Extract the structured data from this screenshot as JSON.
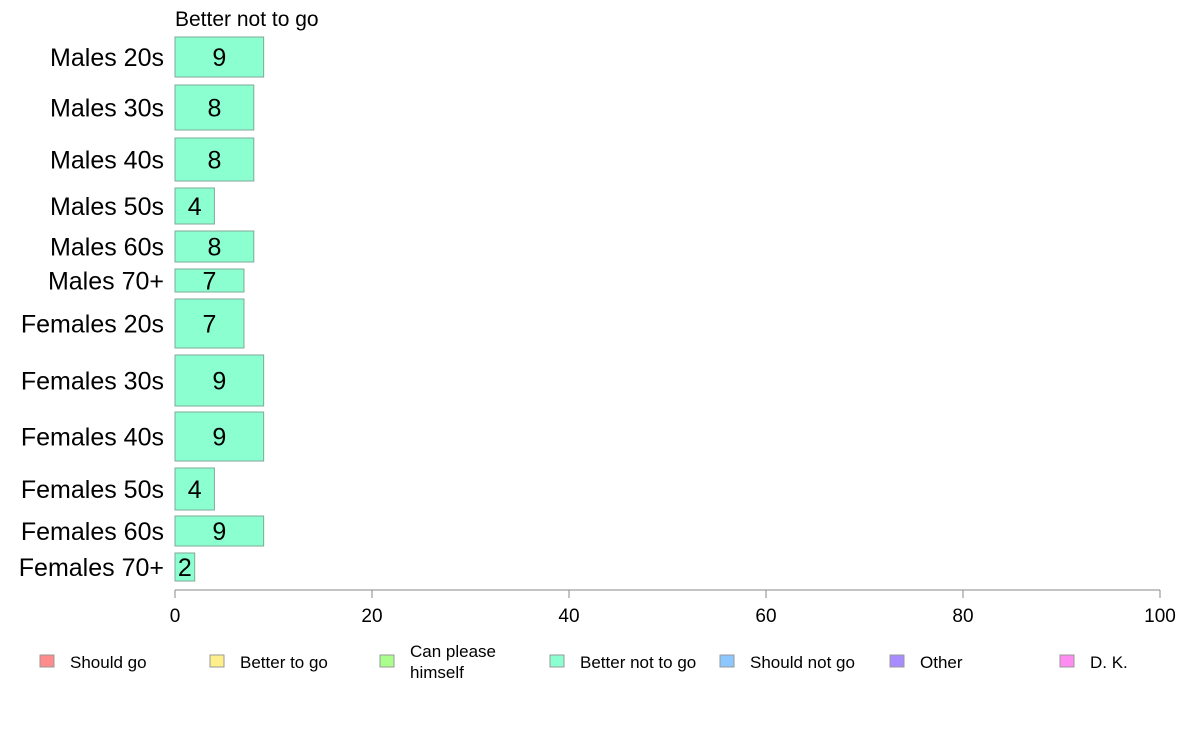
{
  "chart_data": {
    "type": "bar",
    "orientation": "horizontal",
    "title": "Better not to go",
    "categories": [
      "Males 20s",
      "Males 30s",
      "Males 40s",
      "Males 50s",
      "Males 60s",
      "Males 70+",
      "Females 20s",
      "Females 30s",
      "Females 40s",
      "Females 50s",
      "Females 60s",
      "Females 70+"
    ],
    "series": [
      {
        "name": "Better not to go",
        "color": "#8cffd0",
        "values": [
          9,
          8,
          8,
          4,
          8,
          7,
          7,
          9,
          9,
          4,
          9,
          2
        ]
      }
    ],
    "xlim": [
      0,
      100
    ],
    "xticks": [
      0,
      20,
      40,
      60,
      80,
      100
    ],
    "grid": false,
    "legend": {
      "position": "bottom",
      "entries": [
        {
          "label": "Should go",
          "color": "#ff8c8c"
        },
        {
          "label": "Better to go",
          "color": "#ffef8c"
        },
        {
          "label": "Can please himself",
          "lines": [
            "Can please",
            "himself"
          ],
          "color": "#aaff8c"
        },
        {
          "label": "Better not to go",
          "color": "#8cffd0"
        },
        {
          "label": "Should not go",
          "color": "#8cc8ff"
        },
        {
          "label": "Other",
          "color": "#a98cff"
        },
        {
          "label": "D. K.",
          "color": "#ff8cf0"
        }
      ]
    }
  }
}
